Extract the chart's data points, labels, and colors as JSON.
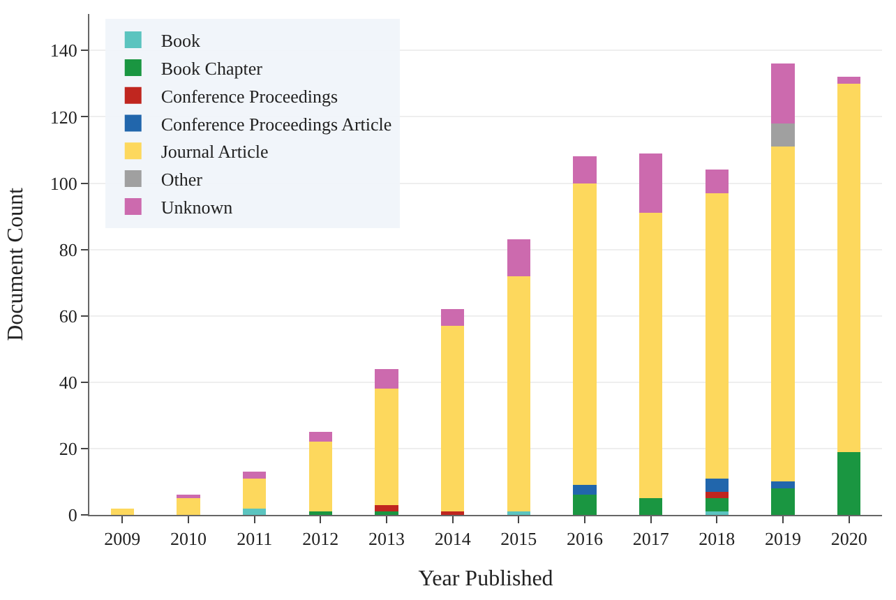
{
  "chart_data": {
    "type": "bar",
    "stacked": true,
    "xlabel": "Year Published",
    "ylabel": "Document Count",
    "categories": [
      "2009",
      "2010",
      "2011",
      "2012",
      "2013",
      "2014",
      "2015",
      "2016",
      "2017",
      "2018",
      "2019",
      "2020"
    ],
    "series": [
      {
        "name": "Book",
        "color": "#5bc4bf",
        "values": [
          0,
          0,
          2,
          0,
          0,
          0,
          1,
          0,
          0,
          1,
          0,
          0
        ]
      },
      {
        "name": "Book Chapter",
        "color": "#1a9641",
        "values": [
          0,
          0,
          0,
          1,
          1,
          0,
          0,
          6,
          5,
          4,
          8,
          19
        ]
      },
      {
        "name": "Conference Proceedings",
        "color": "#c0261f",
        "values": [
          0,
          0,
          0,
          0,
          2,
          1,
          0,
          0,
          0,
          2,
          0,
          0
        ]
      },
      {
        "name": "Conference Proceedings Article",
        "color": "#2166ac",
        "values": [
          0,
          0,
          0,
          0,
          0,
          0,
          0,
          3,
          0,
          4,
          2,
          0
        ]
      },
      {
        "name": "Journal Article",
        "color": "#fdd85d",
        "values": [
          2,
          5,
          9,
          21,
          35,
          56,
          71,
          91,
          86,
          86,
          101,
          111
        ]
      },
      {
        "name": "Other",
        "color": "#a0a0a0",
        "values": [
          0,
          0,
          0,
          0,
          0,
          0,
          0,
          0,
          0,
          0,
          7,
          0
        ]
      },
      {
        "name": "Unknown",
        "color": "#cc6aae",
        "values": [
          0,
          1,
          2,
          3,
          6,
          5,
          11,
          8,
          18,
          7,
          18,
          2
        ]
      }
    ],
    "ylim": [
      0,
      151
    ],
    "yticks": [
      0,
      20,
      40,
      60,
      80,
      100,
      120,
      140
    ],
    "grid": "y",
    "legend": "top left"
  }
}
